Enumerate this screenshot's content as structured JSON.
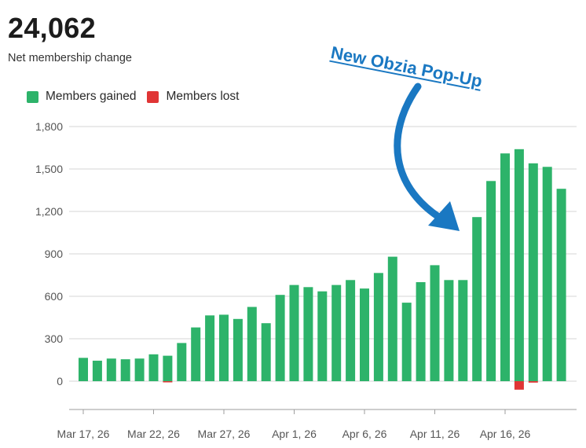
{
  "header": {
    "value": "24,062",
    "label": "Net membership change"
  },
  "legend": {
    "gained": "Members gained",
    "lost": "Members lost"
  },
  "annotation": {
    "text": "New Obzia Pop-Up",
    "color": "#1a78c2",
    "arrow_icon": "curved-arrow-icon"
  },
  "colors": {
    "gained": "#2db36a",
    "lost": "#e03535",
    "grid": "#d6d6d6",
    "axis": "#9e9e9e",
    "tick_text": "#555555"
  },
  "chart_data": {
    "type": "bar",
    "stacked": true,
    "title": "",
    "xlabel": "",
    "ylabel": "",
    "ylim": [
      -200,
      1800
    ],
    "yticks": [
      0,
      300,
      600,
      900,
      1200,
      1500,
      1800
    ],
    "ytick_labels": [
      "0",
      "300",
      "600",
      "900",
      "1,200",
      "1,500",
      "1,800"
    ],
    "x_tick_labels": [
      "Mar 17, 26",
      "Mar 22, 26",
      "Mar 27, 26",
      "Apr 1, 26",
      "Apr 6, 26",
      "Apr 11, 26",
      "Apr 16, 26"
    ],
    "x_tick_every": 5,
    "categories": [
      "Mar 17",
      "Mar 18",
      "Mar 19",
      "Mar 20",
      "Mar 21",
      "Mar 22",
      "Mar 23",
      "Mar 24",
      "Mar 25",
      "Mar 26",
      "Mar 27",
      "Mar 28",
      "Mar 29",
      "Mar 30",
      "Mar 31",
      "Apr 1",
      "Apr 2",
      "Apr 3",
      "Apr 4",
      "Apr 5",
      "Apr 6",
      "Apr 7",
      "Apr 8",
      "Apr 9",
      "Apr 10",
      "Apr 11",
      "Apr 12",
      "Apr 13",
      "Apr 14",
      "Apr 15",
      "Apr 16",
      "Apr 17",
      "Apr 18",
      "Apr 19",
      "Apr 20"
    ],
    "series": [
      {
        "name": "Members gained",
        "color": "#2db36a",
        "values": [
          165,
          145,
          160,
          155,
          160,
          190,
          180,
          270,
          380,
          465,
          470,
          440,
          525,
          410,
          610,
          680,
          665,
          635,
          680,
          715,
          655,
          765,
          880,
          555,
          700,
          820,
          715,
          715,
          1160,
          1415,
          1610,
          1640,
          1540,
          1515,
          1360
        ]
      },
      {
        "name": "Members lost",
        "color": "#e03535",
        "values": [
          0,
          0,
          0,
          0,
          0,
          0,
          -5,
          0,
          0,
          0,
          0,
          0,
          0,
          0,
          0,
          0,
          0,
          0,
          0,
          0,
          0,
          0,
          0,
          0,
          0,
          0,
          0,
          0,
          0,
          0,
          0,
          -60,
          -10,
          0,
          0
        ]
      }
    ],
    "legend_position": "top-left",
    "grid": true
  }
}
